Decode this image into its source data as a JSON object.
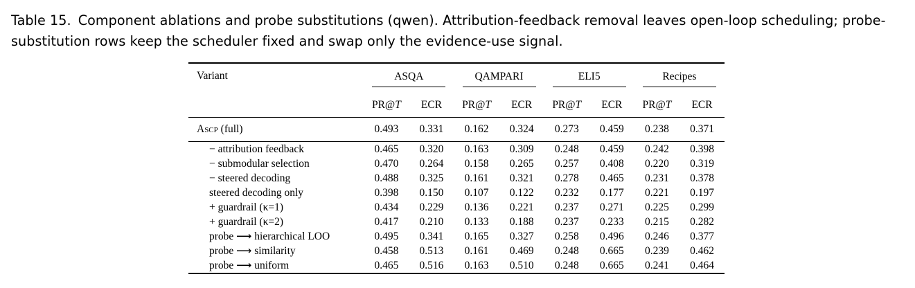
{
  "caption": {
    "label": "Table 15.",
    "text": "Component ablations and probe substitutions (qwen). Attribution-feedback removal leaves open-loop scheduling; probe-substitution rows keep the scheduler fixed and swap only the evidence-use signal."
  },
  "table": {
    "variant_header": "Variant",
    "groups": [
      "ASQA",
      "QAMPARI",
      "ELI5",
      "Recipes"
    ],
    "metric_pr_prefix": "PR@",
    "metric_pr_var": "T",
    "metric_ecr": "ECR",
    "main_row": {
      "name_sc": "Ascp",
      "name_rest": " (full)",
      "values": [
        "0.493",
        "0.331",
        "0.162",
        "0.324",
        "0.273",
        "0.459",
        "0.238",
        "0.371"
      ]
    },
    "rows": [
      {
        "label": "− attribution feedback",
        "values": [
          "0.465",
          "0.320",
          "0.163",
          "0.309",
          "0.248",
          "0.459",
          "0.242",
          "0.398"
        ]
      },
      {
        "label": "− submodular selection",
        "values": [
          "0.470",
          "0.264",
          "0.158",
          "0.265",
          "0.257",
          "0.408",
          "0.220",
          "0.319"
        ]
      },
      {
        "label": "− steered decoding",
        "values": [
          "0.488",
          "0.325",
          "0.161",
          "0.321",
          "0.278",
          "0.465",
          "0.231",
          "0.378"
        ]
      },
      {
        "label": "steered decoding only",
        "values": [
          "0.398",
          "0.150",
          "0.107",
          "0.122",
          "0.232",
          "0.177",
          "0.221",
          "0.197"
        ]
      },
      {
        "label": "+ guardrail (κ=1)",
        "values": [
          "0.434",
          "0.229",
          "0.136",
          "0.221",
          "0.237",
          "0.271",
          "0.225",
          "0.299"
        ]
      },
      {
        "label": "+ guardrail (κ=2)",
        "values": [
          "0.417",
          "0.210",
          "0.133",
          "0.188",
          "0.237",
          "0.233",
          "0.215",
          "0.282"
        ]
      },
      {
        "label": "probe ⟶ hierarchical LOO",
        "values": [
          "0.495",
          "0.341",
          "0.165",
          "0.327",
          "0.258",
          "0.496",
          "0.246",
          "0.377"
        ]
      },
      {
        "label": "probe ⟶ similarity",
        "values": [
          "0.458",
          "0.513",
          "0.161",
          "0.469",
          "0.248",
          "0.665",
          "0.239",
          "0.462"
        ]
      },
      {
        "label": "probe ⟶ uniform",
        "values": [
          "0.465",
          "0.516",
          "0.163",
          "0.510",
          "0.248",
          "0.665",
          "0.241",
          "0.464"
        ]
      }
    ]
  }
}
